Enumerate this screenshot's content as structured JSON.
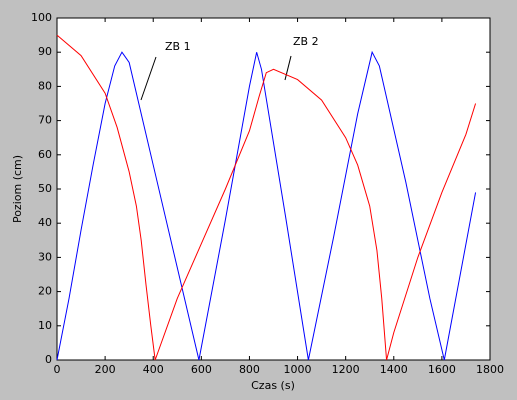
{
  "chart_data": {
    "type": "line",
    "x_label": "Czas (s)",
    "y_label": "Poziom   (cm)",
    "xlim": [
      0,
      1800
    ],
    "xticks": [
      0,
      200,
      400,
      600,
      800,
      1000,
      1200,
      1400,
      1600,
      1800
    ],
    "ylim": [
      0,
      100
    ],
    "yticks": [
      0,
      10,
      20,
      30,
      40,
      50,
      60,
      70,
      80,
      90,
      100
    ],
    "grid": false,
    "series": [
      {
        "name": "ZB 1",
        "color": "#0000ff",
        "x": [
          0,
          50,
          100,
          150,
          200,
          240,
          270,
          300,
          400,
          500,
          590,
          700,
          800,
          830,
          850,
          950,
          1045,
          1150,
          1250,
          1310,
          1340,
          1450,
          1550,
          1610,
          1740
        ],
        "values": [
          0,
          18,
          38,
          57,
          75,
          86,
          90,
          87,
          57,
          27,
          0,
          41,
          80,
          90,
          85,
          42,
          0,
          36,
          72,
          90,
          86,
          52,
          18,
          0,
          49
        ]
      },
      {
        "name": "ZB 2",
        "color": "#ff0000",
        "x": [
          0,
          100,
          200,
          250,
          300,
          330,
          350,
          370,
          390,
          408,
          500,
          600,
          700,
          800,
          840,
          870,
          900,
          1000,
          1100,
          1200,
          1250,
          1300,
          1330,
          1350,
          1370,
          1400,
          1500,
          1600,
          1700,
          1740
        ],
        "values": [
          95,
          89,
          78,
          68,
          55,
          45,
          35,
          22,
          10,
          0,
          18,
          34,
          50,
          67,
          77,
          84,
          85,
          82,
          76,
          65,
          57,
          45,
          32,
          18,
          0,
          8,
          30,
          49,
          66,
          75
        ]
      }
    ]
  }
}
